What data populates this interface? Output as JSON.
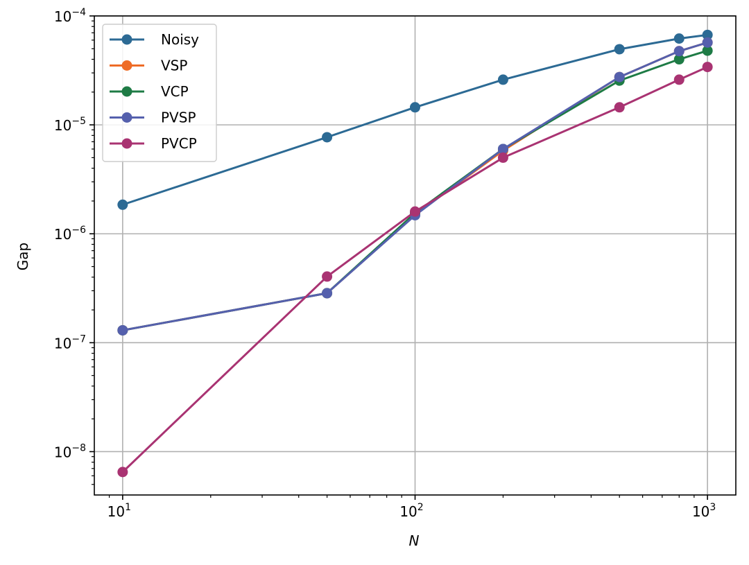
{
  "chart_data": {
    "type": "line",
    "title": "",
    "xlabel": "N",
    "ylabel": "Gap",
    "xscale": "log",
    "yscale": "log",
    "xlim": [
      8,
      1250
    ],
    "ylim": [
      4e-09,
      0.0001
    ],
    "grid": true,
    "legend": "top-left",
    "x": [
      10,
      50,
      100,
      200,
      500,
      800,
      1000
    ],
    "x_ticks": [
      {
        "base": "10",
        "exp": "1",
        "value": 10
      },
      {
        "base": "10",
        "exp": "2",
        "value": 100
      },
      {
        "base": "10",
        "exp": "3",
        "value": 1000
      }
    ],
    "y_ticks": [
      {
        "base": "10",
        "exp": "−8",
        "value": 1e-08
      },
      {
        "base": "10",
        "exp": "−7",
        "value": 1e-07
      },
      {
        "base": "10",
        "exp": "−6",
        "value": 1e-06
      },
      {
        "base": "10",
        "exp": "−5",
        "value": 1e-05
      },
      {
        "base": "10",
        "exp": "−4",
        "value": 0.0001
      }
    ],
    "series": [
      {
        "name": "Noisy",
        "color": "#2c6a94",
        "values": [
          1.85e-06,
          7.7e-06,
          1.45e-05,
          2.6e-05,
          4.95e-05,
          6.2e-05,
          6.7e-05
        ]
      },
      {
        "name": "VSP",
        "color": "#ee6c27",
        "values": [
          1.3e-07,
          2.85e-07,
          1.5e-06,
          5.8e-06,
          2.75e-05,
          4.75e-05,
          5.7e-05
        ]
      },
      {
        "name": "VCP",
        "color": "#1e7b45",
        "values": [
          1.3e-07,
          2.85e-07,
          1.55e-06,
          6e-06,
          2.55e-05,
          4e-05,
          4.8e-05
        ]
      },
      {
        "name": "PVSP",
        "color": "#5560ad",
        "values": [
          1.3e-07,
          2.85e-07,
          1.48e-06,
          6e-06,
          2.75e-05,
          4.75e-05,
          5.7e-05
        ]
      },
      {
        "name": "PVCP",
        "color": "#a93372",
        "values": [
          6.5e-09,
          4.05e-07,
          1.6e-06,
          5e-06,
          1.45e-05,
          2.6e-05,
          3.4e-05
        ]
      }
    ]
  }
}
